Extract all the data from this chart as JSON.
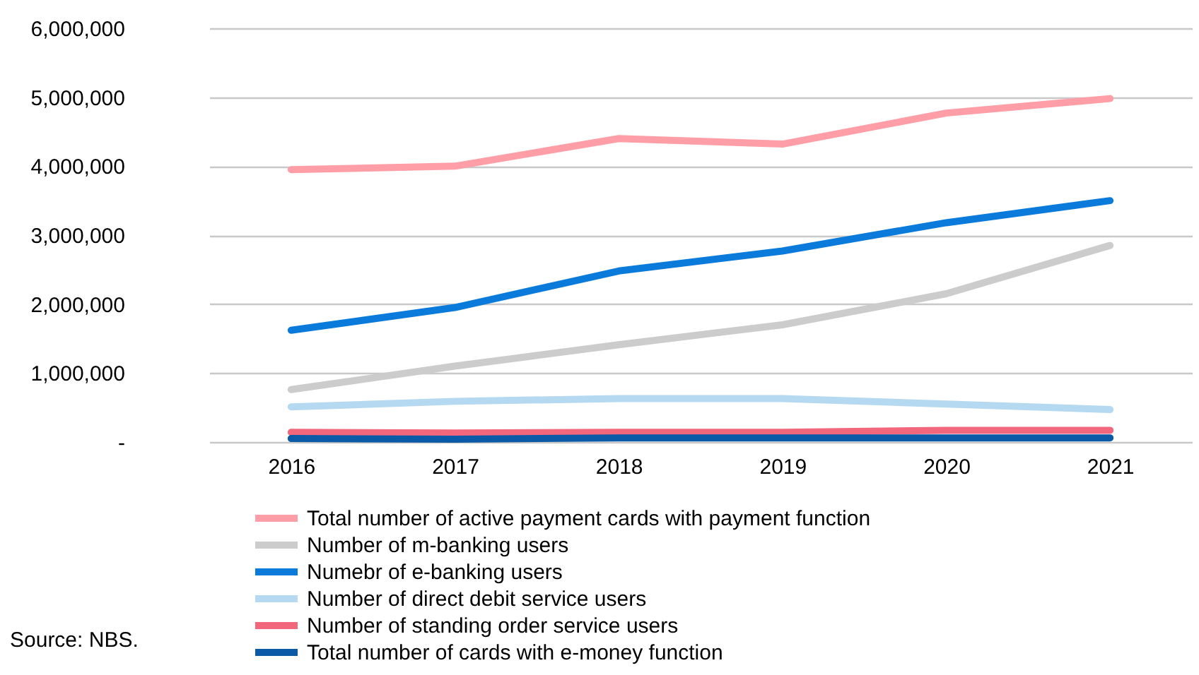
{
  "chart_data": {
    "type": "line",
    "categories": [
      "2016",
      "2017",
      "2018",
      "2019",
      "2020",
      "2021"
    ],
    "series": [
      {
        "name": "Total number of active payment cards with payment function",
        "color": "#ff9ea6",
        "values": [
          3950000,
          4000000,
          4400000,
          4320000,
          4770000,
          4980000
        ]
      },
      {
        "name": "Number of m-banking users",
        "color": "#cccccc",
        "values": [
          760000,
          1100000,
          1410000,
          1700000,
          2150000,
          2850000
        ]
      },
      {
        "name": "Numebr of e-banking users",
        "color": "#0b7bdb",
        "values": [
          1620000,
          1950000,
          2480000,
          2770000,
          3180000,
          3500000
        ]
      },
      {
        "name": "Number of direct debit service users",
        "color": "#b4d9f0",
        "values": [
          510000,
          590000,
          630000,
          630000,
          550000,
          470000
        ]
      },
      {
        "name": "Number of standing order service users",
        "color": "#f2677c",
        "values": [
          140000,
          130000,
          140000,
          140000,
          170000,
          170000
        ]
      },
      {
        "name": "Total number of cards with e-money function",
        "color": "#0a5aa8",
        "values": [
          50000,
          40000,
          60000,
          60000,
          60000,
          60000
        ]
      }
    ],
    "ylim": [
      0,
      6000000
    ],
    "yticks": [
      {
        "value": 0,
        "label": "-"
      },
      {
        "value": 1000000,
        "label": "1,000,000"
      },
      {
        "value": 2000000,
        "label": "2,000,000"
      },
      {
        "value": 3000000,
        "label": "3,000,000"
      },
      {
        "value": 4000000,
        "label": "4,000,000"
      },
      {
        "value": 5000000,
        "label": "5,000,000"
      },
      {
        "value": 6000000,
        "label": "6,000,000"
      }
    ],
    "grid": "y",
    "legend": "bottom",
    "marker": "none",
    "line_style": "solid",
    "annotations": [
      "Source: NBS."
    ]
  }
}
